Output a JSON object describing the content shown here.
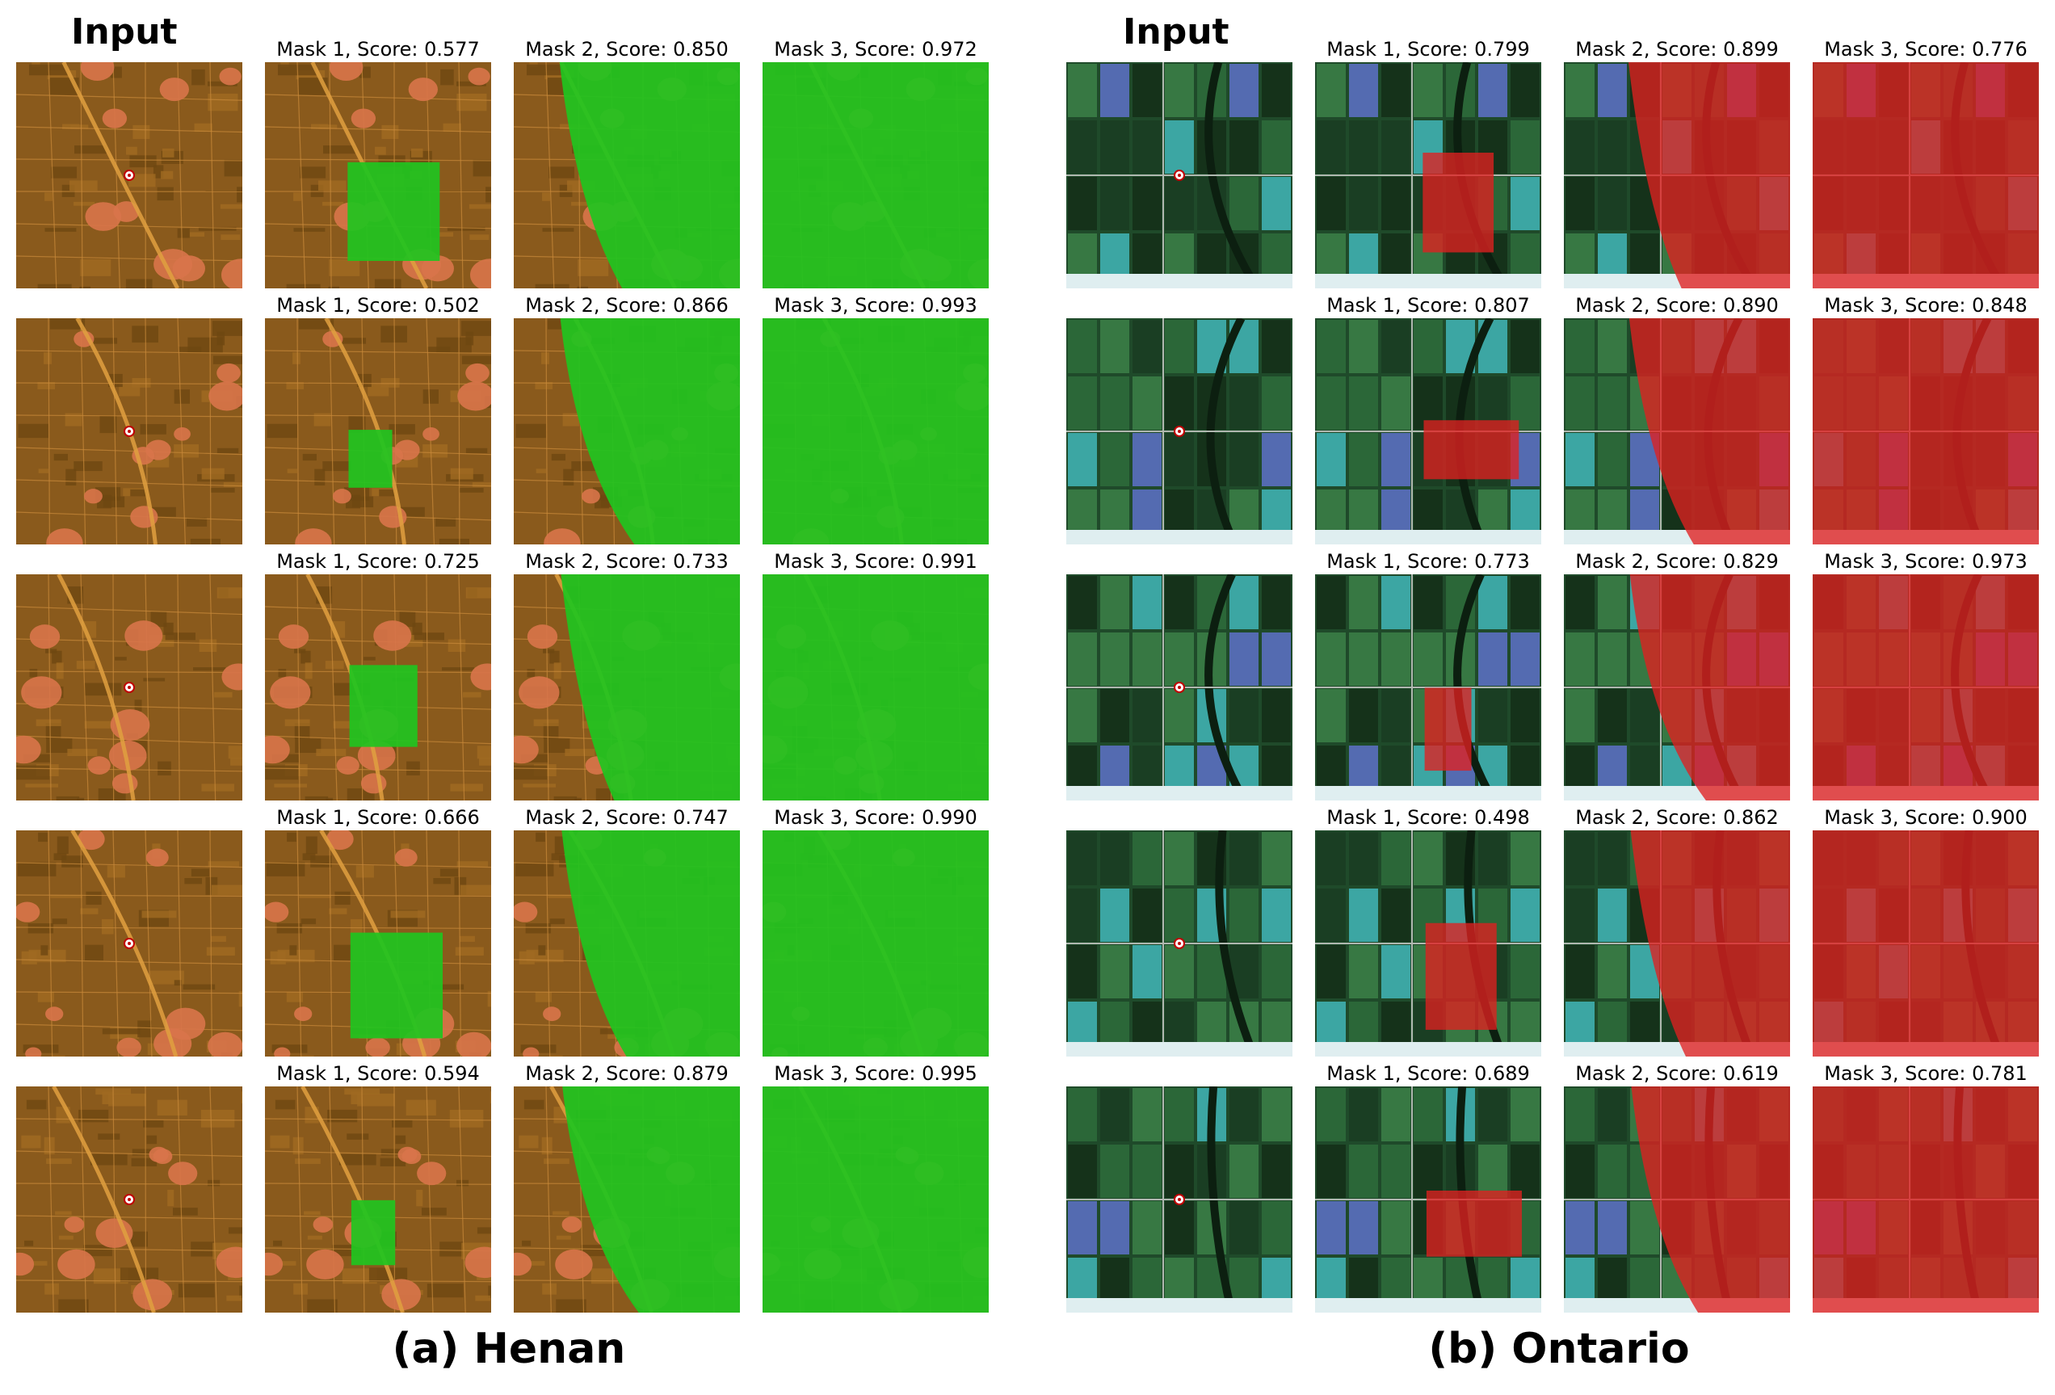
{
  "panels": [
    {
      "key": "henan",
      "input_label": "Input",
      "caption": "(a) Henan",
      "theme": "henan",
      "rows": [
        {
          "labels": [
            "Mask 1, Score: 0.577",
            "Mask 2, Score: 0.850",
            "Mask 3, Score: 0.972"
          ]
        },
        {
          "labels": [
            "Mask 1, Score: 0.502",
            "Mask 2, Score: 0.866",
            "Mask 3, Score: 0.993"
          ]
        },
        {
          "labels": [
            "Mask 1, Score: 0.725",
            "Mask 2, Score: 0.733",
            "Mask 3, Score: 0.991"
          ]
        },
        {
          "labels": [
            "Mask 1, Score: 0.666",
            "Mask 2, Score: 0.747",
            "Mask 3, Score: 0.990"
          ]
        },
        {
          "labels": [
            "Mask 1, Score: 0.594",
            "Mask 2, Score: 0.879",
            "Mask 3, Score: 0.995"
          ]
        }
      ]
    },
    {
      "key": "ontario",
      "input_label": "Input",
      "caption": "(b) Ontario",
      "theme": "ontario",
      "rows": [
        {
          "labels": [
            "Mask 1, Score: 0.799",
            "Mask 2, Score: 0.899",
            "Mask 3, Score: 0.776"
          ]
        },
        {
          "labels": [
            "Mask 1, Score: 0.807",
            "Mask 2, Score: 0.890",
            "Mask 3, Score: 0.848"
          ]
        },
        {
          "labels": [
            "Mask 1, Score: 0.773",
            "Mask 2, Score: 0.829",
            "Mask 3, Score: 0.973"
          ]
        },
        {
          "labels": [
            "Mask 1, Score: 0.498",
            "Mask 2, Score: 0.862",
            "Mask 3, Score: 0.900"
          ]
        },
        {
          "labels": [
            "Mask 1, Score: 0.689",
            "Mask 2, Score: 0.619",
            "Mask 3, Score: 0.781"
          ]
        }
      ]
    }
  ],
  "colors": {
    "henan_bg": "#8a5a1c",
    "henan_settlement": "#d8744a",
    "henan_road": "#e0a040",
    "henan_mask": "#1fc41f",
    "ontario_bg": "#1f4a2a",
    "ontario_field_cyan": "#3fb0b0",
    "ontario_field_blue": "#5a6fc0",
    "ontario_mask": "#e02020",
    "point_marker": "#ffffff"
  }
}
